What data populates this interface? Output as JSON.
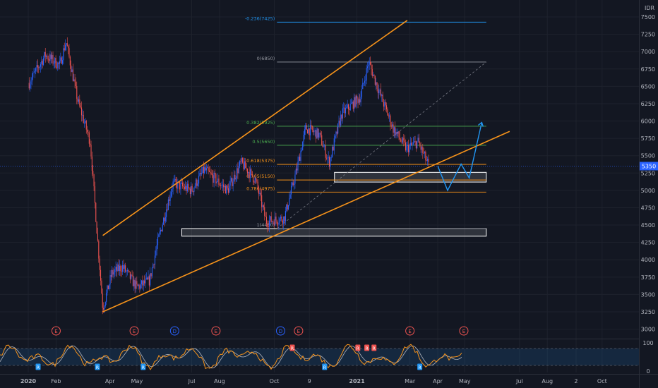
{
  "colors": {
    "background": "#131722",
    "grid": "#1e222d",
    "axis_text": "#b2b5be",
    "up": "#26a69a",
    "up_body": "#2962ff",
    "down": "#ef5350",
    "channel": "#f7931a",
    "fib_top": "#2196f3",
    "fib_0": "#9598a1",
    "fib_382": "#4caf50",
    "fib_618": "#f7931a",
    "stoch_k": "#f7931a",
    "stoch_d": "#b2b5be",
    "zone": "#ffffff",
    "projection": "#2196f3"
  },
  "price_axis": {
    "unit_label": "IDR",
    "ticks": [
      "7500",
      "7250",
      "7000",
      "6750",
      "6500",
      "6250",
      "6000",
      "5750",
      "5500",
      "5250",
      "5000",
      "4750",
      "4500",
      "4250",
      "4000",
      "3750",
      "3500",
      "3250",
      "3000"
    ],
    "current_price_label": "5350"
  },
  "time_axis": {
    "labels": [
      "2020",
      "Feb",
      "Apr",
      "May",
      "Jul",
      "Aug",
      "Oct",
      "9",
      "2021",
      "Mar",
      "Apr",
      "May",
      "Jul",
      "Aug",
      "2",
      "Oct"
    ]
  },
  "oscillator_axis": {
    "ticks": [
      "100",
      "0"
    ]
  },
  "chart_data": {
    "type": "candlestick",
    "title": "",
    "ylabel": "IDR",
    "ylim": [
      3000,
      7600
    ],
    "xlim": [
      "2020-01-01",
      "2021-10-31"
    ],
    "log_scale": false,
    "grid": false,
    "approx_price_path": [
      {
        "date": "2020-01-02",
        "close": 6550
      },
      {
        "date": "2020-01-20",
        "close": 6950
      },
      {
        "date": "2020-02-05",
        "close": 6800
      },
      {
        "date": "2020-02-12",
        "close": 7150
      },
      {
        "date": "2020-02-25",
        "close": 6300
      },
      {
        "date": "2020-03-10",
        "close": 5700
      },
      {
        "date": "2020-03-24",
        "close": 3300
      },
      {
        "date": "2020-04-03",
        "close": 3800
      },
      {
        "date": "2020-04-15",
        "close": 3900
      },
      {
        "date": "2020-05-01",
        "close": 3600
      },
      {
        "date": "2020-05-15",
        "close": 3700
      },
      {
        "date": "2020-05-25",
        "close": 4300
      },
      {
        "date": "2020-06-10",
        "close": 5100
      },
      {
        "date": "2020-07-01",
        "close": 5000
      },
      {
        "date": "2020-07-15",
        "close": 5300
      },
      {
        "date": "2020-08-10",
        "close": 5000
      },
      {
        "date": "2020-08-25",
        "close": 5400
      },
      {
        "date": "2020-09-10",
        "close": 5150
      },
      {
        "date": "2020-09-22",
        "close": 4550
      },
      {
        "date": "2020-10-12",
        "close": 4600
      },
      {
        "date": "2020-10-26",
        "close": 5300
      },
      {
        "date": "2020-11-05",
        "close": 5900
      },
      {
        "date": "2020-11-20",
        "close": 5800
      },
      {
        "date": "2020-12-01",
        "close": 5400
      },
      {
        "date": "2020-12-15",
        "close": 6100
      },
      {
        "date": "2021-01-05",
        "close": 6350
      },
      {
        "date": "2021-01-14",
        "close": 6850
      },
      {
        "date": "2021-01-25",
        "close": 6450
      },
      {
        "date": "2021-02-10",
        "close": 5900
      },
      {
        "date": "2021-02-25",
        "close": 5600
      },
      {
        "date": "2021-03-10",
        "close": 5700
      },
      {
        "date": "2021-03-22",
        "close": 5350
      }
    ],
    "fibonacci_levels": [
      {
        "ratio_label": "-0.236(7425)",
        "price": 7425
      },
      {
        "ratio_label": "0(6850)",
        "price": 6850
      },
      {
        "ratio_label": "0.382(5925)",
        "price": 5925
      },
      {
        "ratio_label": "0.5(5650)",
        "price": 5650
      },
      {
        "ratio_label": "0.618(5375)",
        "price": 5375
      },
      {
        "ratio_label": "0.705(5150)",
        "price": 5150
      },
      {
        "ratio_label": "0.786(4975)",
        "price": 4975
      },
      {
        "ratio_label": "1(4450)",
        "price": 4450
      }
    ],
    "channel_lines": [
      {
        "from": {
          "date": "2020-03-24",
          "price": 4350
        },
        "to": {
          "date": "2021-02-26",
          "price": 7450
        }
      },
      {
        "from": {
          "date": "2020-03-24",
          "price": 3250
        },
        "to": {
          "date": "2021-06-20",
          "price": 5850
        }
      }
    ],
    "zones": [
      {
        "price_low": 5120,
        "price_high": 5260,
        "date_from": "2020-12-07",
        "date_to": "2021-05-25"
      },
      {
        "price_low": 4340,
        "price_high": 4450,
        "date_from": "2020-06-20",
        "date_to": "2021-05-25"
      }
    ],
    "projection_path": [
      {
        "date": "2021-04-01",
        "price": 5350
      },
      {
        "date": "2021-04-12",
        "price": 5000
      },
      {
        "date": "2021-04-27",
        "price": 5380
      },
      {
        "date": "2021-05-06",
        "price": 5180
      },
      {
        "date": "2021-05-20",
        "price": 5980
      }
    ],
    "event_markers": [
      {
        "label": "E",
        "date": "2020-02-01"
      },
      {
        "label": "E",
        "date": "2020-04-28"
      },
      {
        "label": "D",
        "date": "2020-06-12"
      },
      {
        "label": "E",
        "date": "2020-07-28"
      },
      {
        "label": "D",
        "date": "2020-10-08"
      },
      {
        "label": "E",
        "date": "2020-10-28"
      },
      {
        "label": "E",
        "date": "2021-03-01"
      },
      {
        "label": "E",
        "date": "2021-04-30"
      }
    ],
    "oscillator": {
      "name": "",
      "ylim": [
        0,
        100
      ],
      "band": [
        20,
        80
      ],
      "markers": [
        {
          "label": "R",
          "color": "red",
          "date": "2020-10-21"
        },
        {
          "label": "R",
          "color": "red",
          "date": "2021-01-02"
        },
        {
          "label": "R",
          "color": "red",
          "date": "2021-01-12"
        },
        {
          "label": "R",
          "color": "red",
          "date": "2021-01-20"
        },
        {
          "label": "R",
          "color": "blue",
          "date": "2020-01-12"
        },
        {
          "label": "R",
          "color": "blue",
          "date": "2020-03-18"
        },
        {
          "label": "R",
          "color": "blue",
          "date": "2020-05-08"
        },
        {
          "label": "R",
          "color": "blue",
          "date": "2020-11-26"
        },
        {
          "label": "R",
          "color": "blue",
          "date": "2021-03-12"
        }
      ]
    }
  }
}
